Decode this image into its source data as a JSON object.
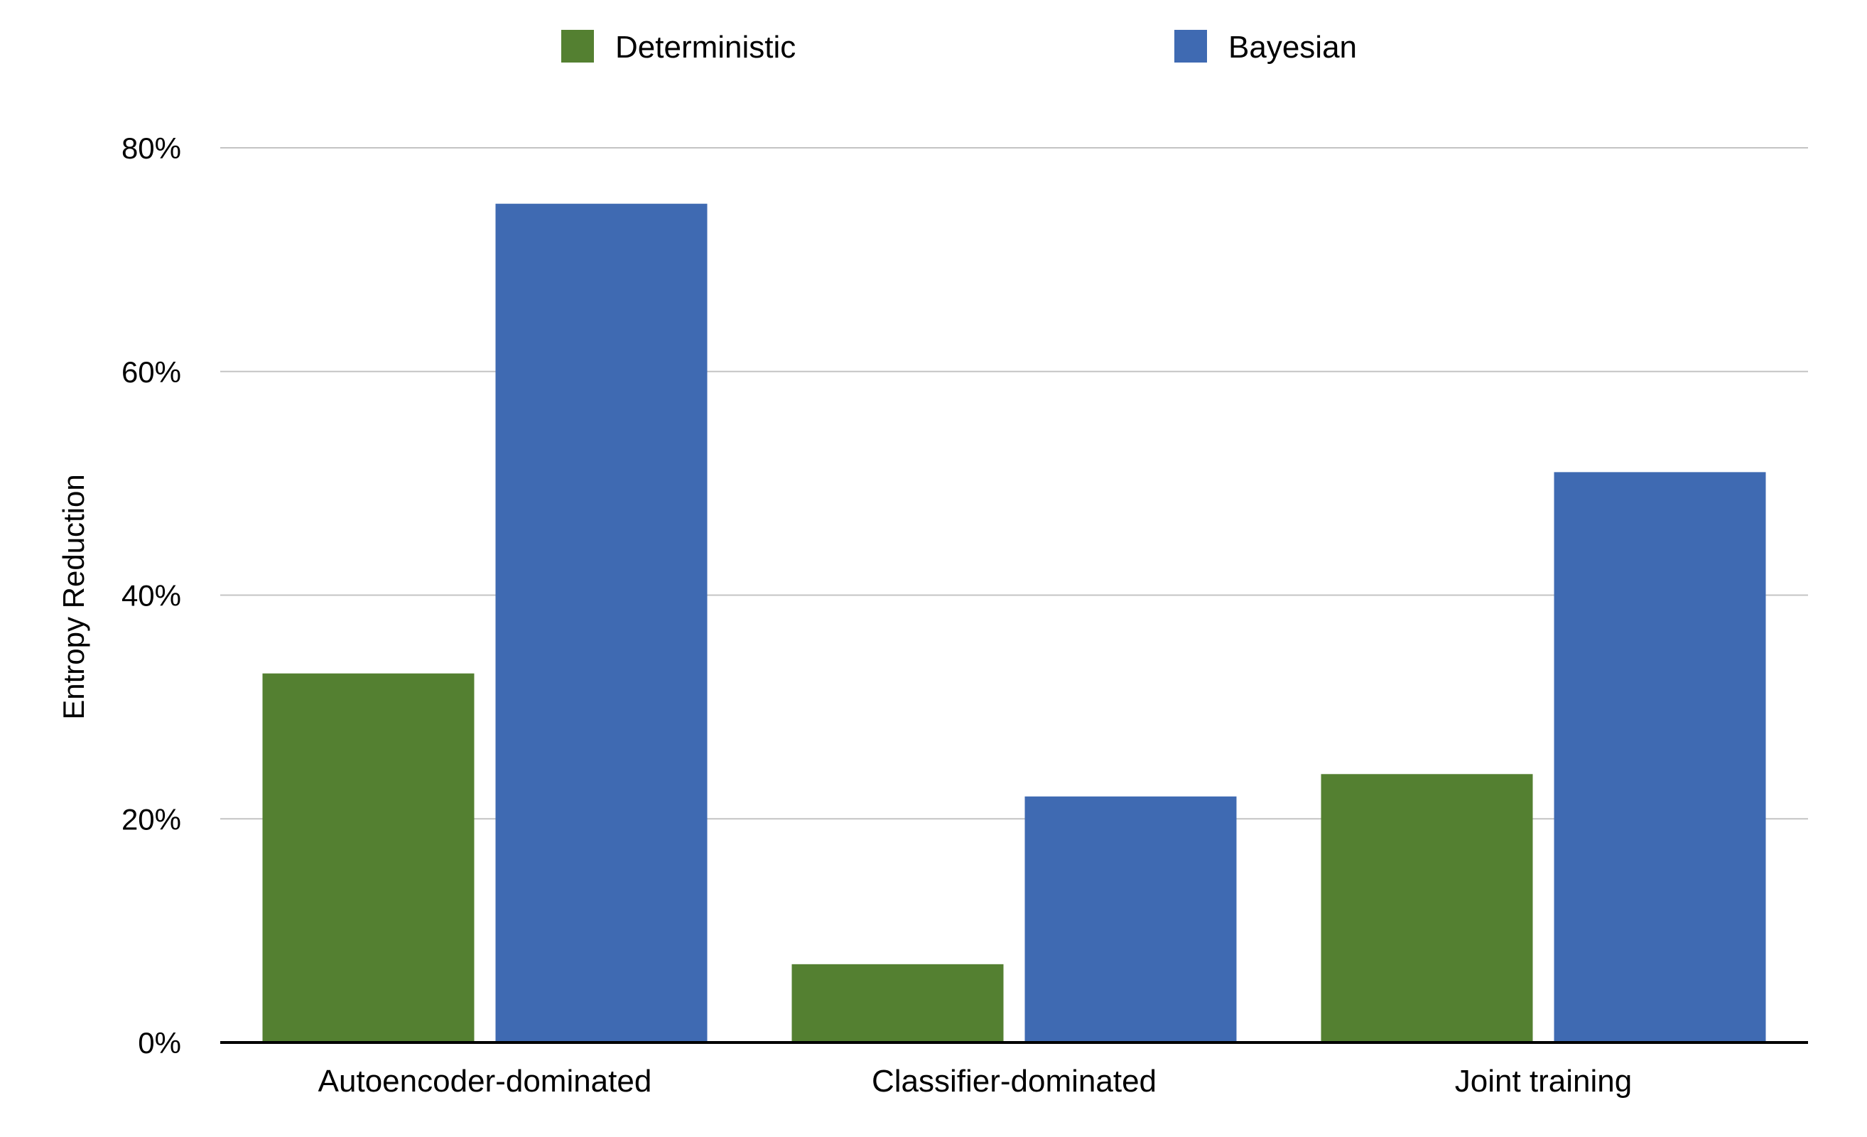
{
  "chart_data": {
    "type": "bar",
    "title": "",
    "xlabel": "",
    "ylabel": "Entropy Reduction",
    "categories": [
      "Autoencoder-dominated",
      "Classifier-dominated",
      "Joint training"
    ],
    "series": [
      {
        "name": "Deterministic",
        "color": "#548031",
        "values": [
          33,
          7,
          24
        ]
      },
      {
        "name": "Bayesian",
        "color": "#3f6ab2",
        "values": [
          75,
          22,
          51
        ]
      }
    ],
    "ylim": [
      0,
      80
    ],
    "yticks": [
      0,
      20,
      40,
      60,
      80
    ],
    "ytick_labels": [
      "0%",
      "20%",
      "40%",
      "60%",
      "80%"
    ],
    "grid": true,
    "legend_position": "top-center"
  }
}
